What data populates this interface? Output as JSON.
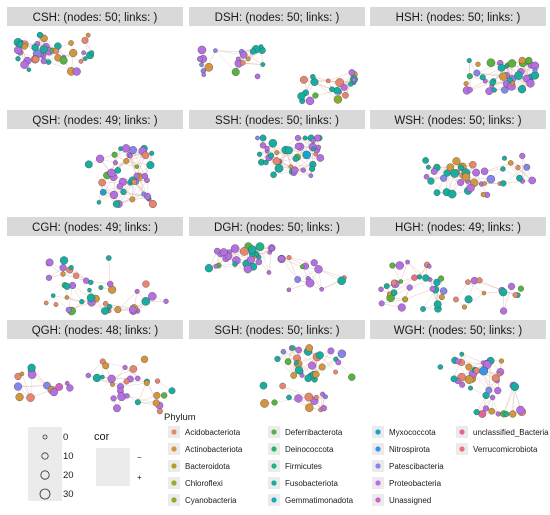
{
  "chart_data": [
    {
      "type": "network",
      "title": "CSH: (nodes: 50; links: )"
    },
    {
      "type": "network",
      "title": "DSH: (nodes: 50; links: )"
    },
    {
      "type": "network",
      "title": "HSH: (nodes: 50; links: )"
    },
    {
      "type": "network",
      "title": "QSH: (nodes: 49; links: )"
    },
    {
      "type": "network",
      "title": "SSH: (nodes: 50; links: )"
    },
    {
      "type": "network",
      "title": "WSH: (nodes: 50; links: )"
    },
    {
      "type": "network",
      "title": "CGH: (nodes: 49; links: )"
    },
    {
      "type": "network",
      "title": "DGH: (nodes: 50; links: )"
    },
    {
      "type": "network",
      "title": "HGH: (nodes: 49; links: )"
    },
    {
      "type": "network",
      "title": "QGH: (nodes: 48; links: )"
    },
    {
      "type": "network",
      "title": "SGH: (nodes: 50; links: )"
    },
    {
      "type": "network",
      "title": "WGH: (nodes: 50; links: )"
    }
  ],
  "legend": {
    "size_values": [
      "0",
      "10",
      "20",
      "30"
    ],
    "cor_title": "cor",
    "cor_labels": [
      "−",
      "+"
    ],
    "phylum_title": "Phylum",
    "phyla": [
      {
        "name": "Acidobacteriota",
        "color": "#e7866f"
      },
      {
        "name": "Actinobacteriota",
        "color": "#d3963f"
      },
      {
        "name": "Bacteroidota",
        "color": "#b79d2e"
      },
      {
        "name": "Chloroflexi",
        "color": "#a3a82c"
      },
      {
        "name": "Cyanobacteria",
        "color": "#8aab2a"
      },
      {
        "name": "Deferribacterota",
        "color": "#56b33f"
      },
      {
        "name": "Deinococcota",
        "color": "#2bb56a"
      },
      {
        "name": "Firmicutes",
        "color": "#1db38c"
      },
      {
        "name": "Fusobacteriota",
        "color": "#17ad9f"
      },
      {
        "name": "Gemmatimonadota",
        "color": "#16a9b6"
      },
      {
        "name": "Myxococcota",
        "color": "#1aa2cf"
      },
      {
        "name": "Nitrospirota",
        "color": "#3b93e6"
      },
      {
        "name": "Patescibacteria",
        "color": "#8585ec"
      },
      {
        "name": "Proteobacteria",
        "color": "#b46fe0"
      },
      {
        "name": "Unassigned",
        "color": "#d064c4"
      },
      {
        "name": "unclassified_Bacteria",
        "color": "#e4629a"
      },
      {
        "name": "Verrucomicrobiota",
        "color": "#ec6f7f"
      }
    ]
  }
}
